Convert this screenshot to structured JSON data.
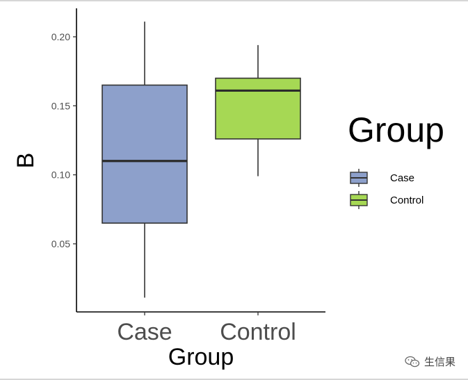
{
  "chart_data": {
    "type": "boxplot",
    "title": "",
    "xlabel": "Group",
    "ylabel": "B",
    "categories": [
      "Case",
      "Control"
    ],
    "ylim": [
      0.0,
      0.22
    ],
    "yticks": [
      0.05,
      0.1,
      0.15,
      0.2
    ],
    "ytick_labels": [
      "0.05",
      "0.10",
      "0.15",
      "0.20"
    ],
    "boxes": [
      {
        "group": "Case",
        "min": 0.011,
        "q1": 0.065,
        "median": 0.11,
        "q3": 0.165,
        "max": 0.211,
        "color": "#8DA0CB"
      },
      {
        "group": "Control",
        "min": 0.099,
        "q1": 0.126,
        "median": 0.161,
        "q3": 0.17,
        "max": 0.194,
        "color": "#A6D854"
      }
    ],
    "legend": {
      "title": "Group",
      "position": "right",
      "entries": [
        {
          "label": "Case",
          "color": "#8DA0CB"
        },
        {
          "label": "Control",
          "color": "#A6D854"
        }
      ]
    },
    "grid": false
  },
  "watermark": {
    "text": "生信果",
    "icon": "wechat-icon"
  }
}
